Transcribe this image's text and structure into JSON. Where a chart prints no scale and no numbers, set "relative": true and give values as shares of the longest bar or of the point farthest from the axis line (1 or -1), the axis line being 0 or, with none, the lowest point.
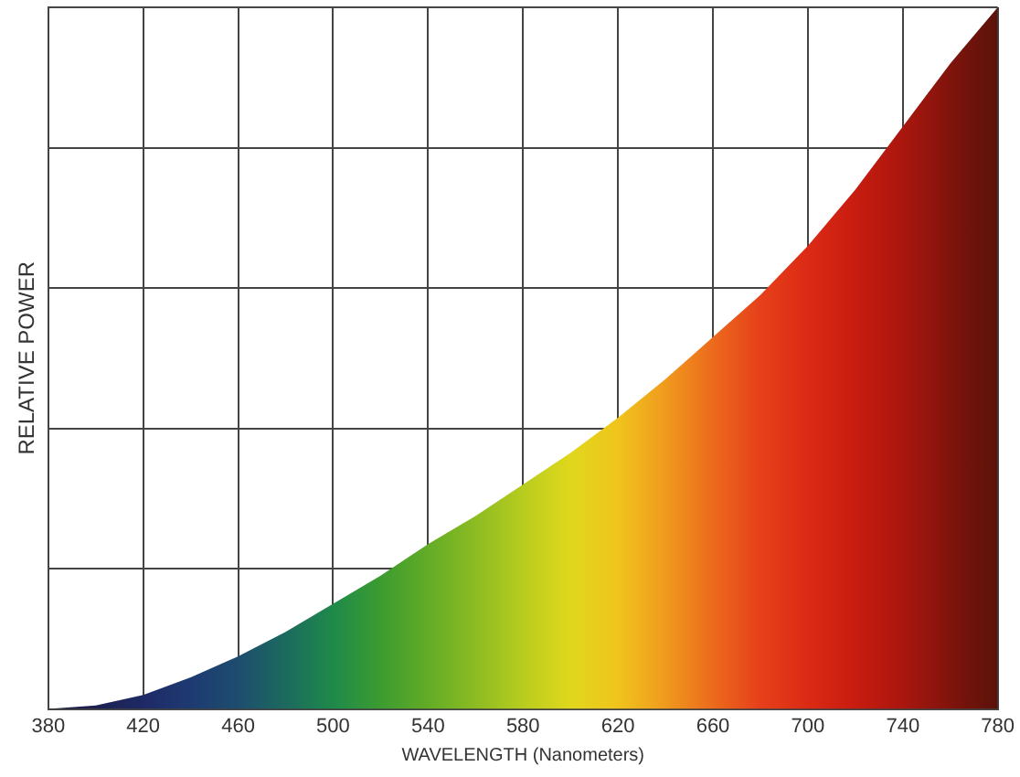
{
  "chart_data": {
    "type": "area",
    "relative": true,
    "xlabel": "WAVELENGTH (Nanometers)",
    "ylabel": "RELATIVE POWER",
    "x": [
      380,
      400,
      420,
      440,
      460,
      480,
      500,
      520,
      540,
      560,
      580,
      600,
      620,
      640,
      660,
      680,
      700,
      720,
      740,
      760,
      780
    ],
    "series": [
      {
        "values": [
          0,
          0.005,
          0.02,
          0.045,
          0.075,
          0.11,
          0.15,
          0.19,
          0.235,
          0.275,
          0.32,
          0.365,
          0.415,
          0.47,
          0.53,
          0.59,
          0.66,
          0.74,
          0.83,
          0.92,
          1
        ],
        "colors": [
          "#1c1c40",
          "#1c2050",
          "#1e2a66",
          "#1e3a72",
          "#1d4d6e",
          "#1c6a5e",
          "#1e8a4a",
          "#3c9c30",
          "#62ac26",
          "#8cbc22",
          "#b8cc1e",
          "#e0d81c",
          "#f0c41c",
          "#f09a1e",
          "#ec6a1c",
          "#e6401a",
          "#dc2a14",
          "#c81c10",
          "#aa160e",
          "#80140c",
          "#5a120a"
        ]
      }
    ],
    "xlim": [
      380,
      780
    ],
    "xticks": [
      380,
      420,
      460,
      500,
      540,
      580,
      620,
      660,
      700,
      740,
      780
    ],
    "grid": true
  }
}
